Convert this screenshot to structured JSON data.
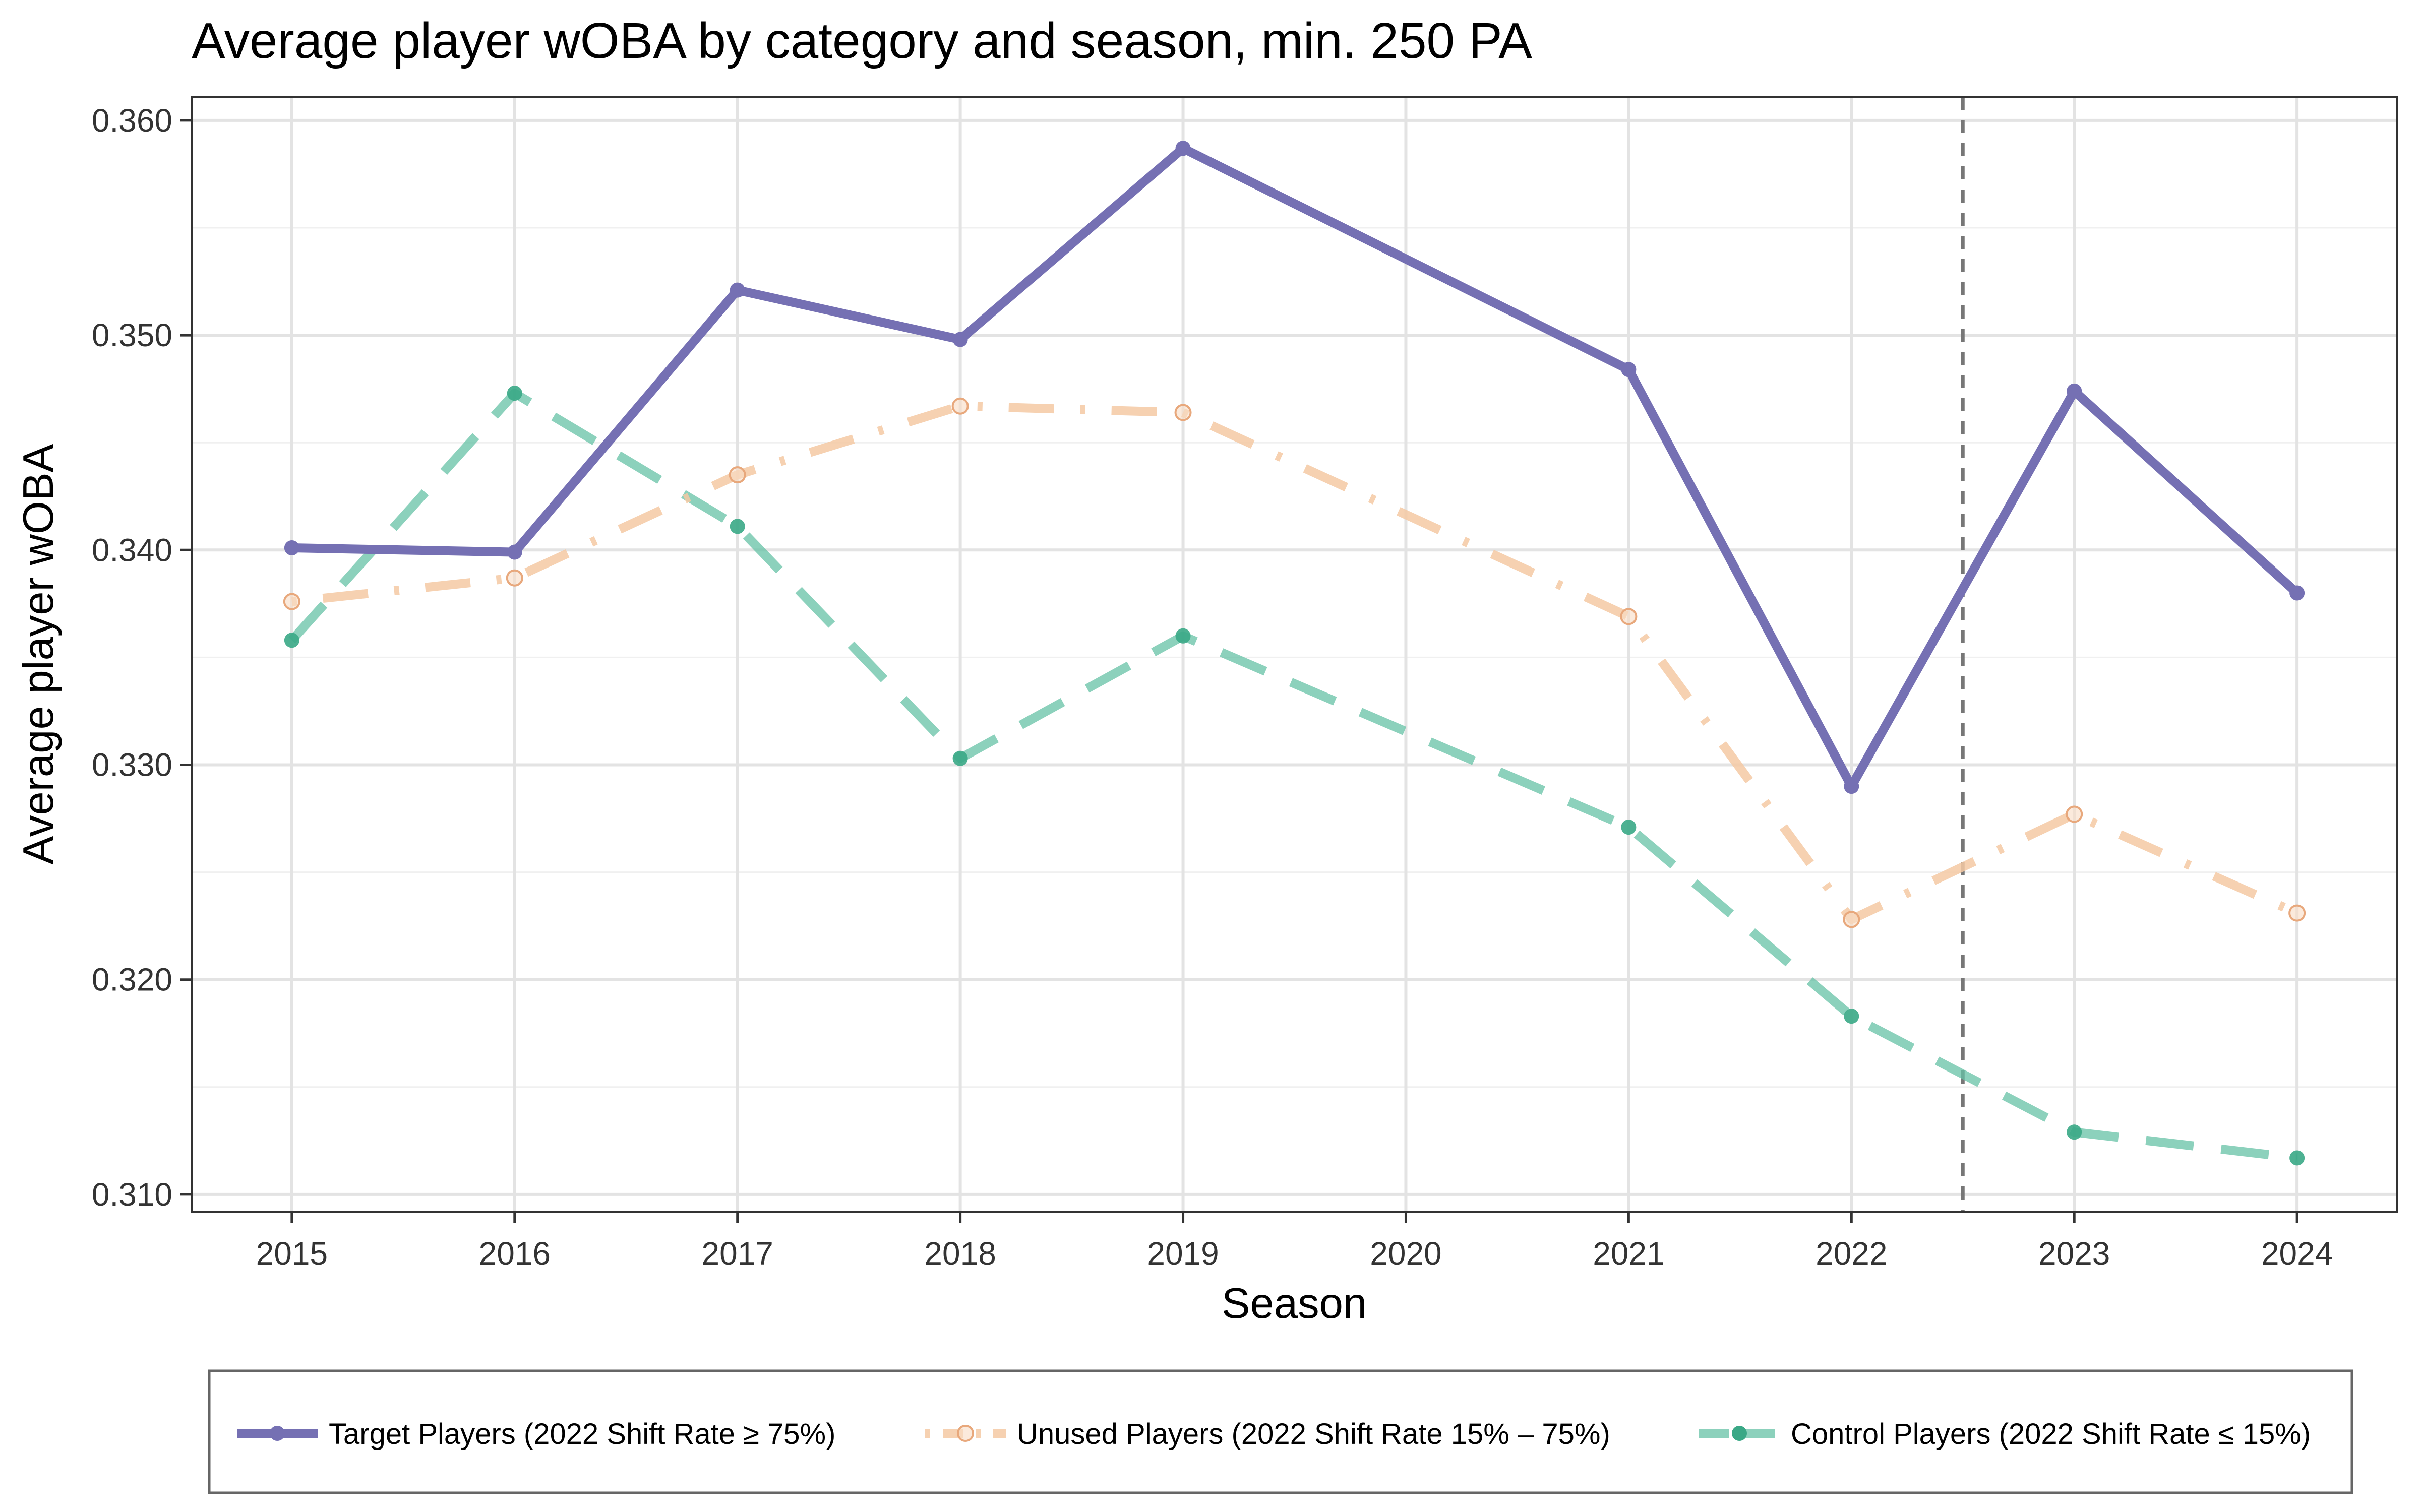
{
  "chart_data": {
    "type": "line",
    "title": "Average player wOBA by category and season, min. 250 PA",
    "xlabel": "Season",
    "ylabel": "Average player wOBA",
    "x": [
      2015,
      2016,
      2017,
      2018,
      2019,
      2020,
      2021,
      2022,
      2023,
      2024
    ],
    "x_tick_labels": [
      "2015",
      "2016",
      "2017",
      "2018",
      "2019",
      "2020",
      "2021",
      "2022",
      "2023",
      "2024"
    ],
    "y_tick_values": [
      0.31,
      0.32,
      0.33,
      0.34,
      0.35,
      0.36
    ],
    "y_tick_labels": [
      "0.310",
      "0.320",
      "0.330",
      "0.340",
      "0.350",
      "0.360"
    ],
    "xlim": [
      2014.55,
      2024.45
    ],
    "ylim": [
      0.3092,
      0.3611
    ],
    "grid": true,
    "legend_position": "bottom",
    "reference_line": {
      "x": 2022.5,
      "style": "dashed",
      "color": "#777777"
    },
    "series": [
      {
        "name": "Target Players (2022 Shift Rate ≥ 75%)",
        "color": "#7570b3",
        "line_style": "solid",
        "marker": "filled",
        "x": [
          2015,
          2016,
          2017,
          2018,
          2019,
          2021,
          2022,
          2023,
          2024
        ],
        "values": [
          0.3401,
          0.3399,
          0.3521,
          0.3498,
          0.3587,
          0.3484,
          0.329,
          0.3474,
          0.338
        ]
      },
      {
        "name": "Unused Players (2022 Shift Rate 15% – 75%)",
        "color": "#f4c9a3",
        "line_style": "dotdash",
        "marker": "hollow",
        "x": [
          2015,
          2016,
          2017,
          2018,
          2019,
          2021,
          2022,
          2023,
          2024
        ],
        "values": [
          0.3376,
          0.3387,
          0.3435,
          0.3467,
          0.3464,
          0.3369,
          0.3228,
          0.3277,
          0.3231
        ]
      },
      {
        "name": "Control Players (2022 Shift Rate ≤ 15%)",
        "color": "#66c2a5",
        "line_style": "longdash",
        "marker": "filled",
        "x": [
          2015,
          2016,
          2017,
          2018,
          2019,
          2021,
          2022,
          2023,
          2024
        ],
        "values": [
          0.3358,
          0.3473,
          0.3411,
          0.3303,
          0.336,
          0.3271,
          0.3183,
          0.3129,
          0.3117
        ]
      }
    ]
  }
}
